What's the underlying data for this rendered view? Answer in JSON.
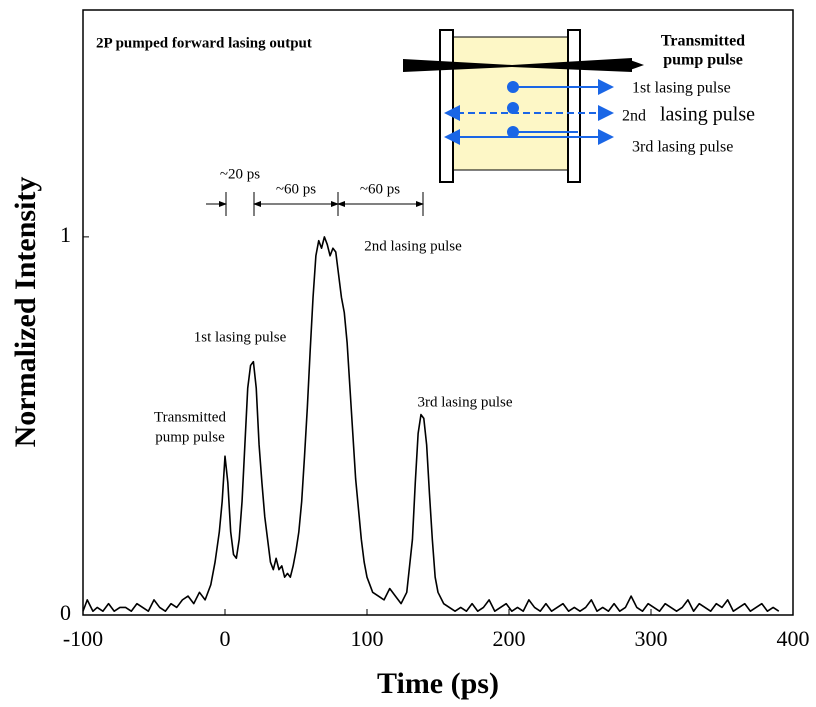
{
  "chart_data": {
    "type": "line",
    "xlabel": "Time (ps)",
    "ylabel": "Normalized Intensity",
    "xlim": [
      -100,
      400
    ],
    "ylim": [
      0,
      1.6
    ],
    "xticks": [
      -100,
      0,
      100,
      200,
      300,
      400
    ],
    "yticks": [
      0,
      1
    ],
    "color": "#000000",
    "x": [
      -100,
      -97,
      -93,
      -90,
      -86,
      -82,
      -78,
      -74,
      -70,
      -66,
      -62,
      -58,
      -54,
      -50,
      -46,
      -42,
      -38,
      -34,
      -30,
      -26,
      -22,
      -18,
      -14,
      -10,
      -7,
      -4,
      -2,
      0,
      2,
      4,
      6,
      8,
      10,
      12,
      14,
      16,
      18,
      20,
      22,
      24,
      26,
      28,
      30,
      32,
      34,
      36,
      38,
      40,
      42,
      44,
      46,
      48,
      50,
      52,
      54,
      56,
      58,
      60,
      62,
      64,
      66,
      68,
      70,
      72,
      74,
      76,
      78,
      80,
      82,
      84,
      86,
      88,
      90,
      92,
      94,
      96,
      98,
      100,
      104,
      108,
      112,
      116,
      120,
      124,
      128,
      132,
      134,
      136,
      138,
      140,
      142,
      144,
      146,
      148,
      150,
      154,
      158,
      162,
      166,
      170,
      174,
      178,
      182,
      186,
      190,
      194,
      198,
      202,
      206,
      210,
      214,
      218,
      222,
      226,
      230,
      234,
      238,
      242,
      246,
      250,
      254,
      258,
      262,
      266,
      270,
      274,
      278,
      282,
      286,
      290,
      294,
      298,
      302,
      306,
      310,
      314,
      318,
      322,
      326,
      330,
      334,
      338,
      342,
      346,
      350,
      354,
      358,
      362,
      366,
      370,
      374,
      378,
      382,
      386,
      390
    ],
    "values": [
      0.01,
      0.04,
      0.01,
      0.02,
      0.01,
      0.03,
      0.01,
      0.02,
      0.02,
      0.01,
      0.03,
      0.02,
      0.01,
      0.04,
      0.02,
      0.01,
      0.03,
      0.02,
      0.04,
      0.05,
      0.03,
      0.06,
      0.04,
      0.08,
      0.14,
      0.22,
      0.3,
      0.42,
      0.35,
      0.22,
      0.16,
      0.15,
      0.2,
      0.3,
      0.45,
      0.6,
      0.66,
      0.67,
      0.6,
      0.45,
      0.35,
      0.26,
      0.2,
      0.14,
      0.12,
      0.15,
      0.12,
      0.13,
      0.1,
      0.11,
      0.1,
      0.13,
      0.17,
      0.22,
      0.3,
      0.42,
      0.55,
      0.7,
      0.84,
      0.95,
      0.99,
      0.97,
      1.0,
      0.98,
      0.95,
      0.97,
      0.96,
      0.9,
      0.84,
      0.8,
      0.72,
      0.6,
      0.48,
      0.36,
      0.28,
      0.2,
      0.14,
      0.1,
      0.06,
      0.05,
      0.04,
      0.07,
      0.05,
      0.03,
      0.06,
      0.2,
      0.35,
      0.48,
      0.53,
      0.52,
      0.45,
      0.32,
      0.2,
      0.1,
      0.06,
      0.03,
      0.02,
      0.01,
      0.02,
      0.01,
      0.03,
      0.01,
      0.02,
      0.04,
      0.01,
      0.02,
      0.03,
      0.01,
      0.02,
      0.01,
      0.04,
      0.02,
      0.01,
      0.03,
      0.01,
      0.02,
      0.03,
      0.01,
      0.02,
      0.01,
      0.02,
      0.04,
      0.01,
      0.02,
      0.01,
      0.03,
      0.01,
      0.02,
      0.05,
      0.02,
      0.01,
      0.03,
      0.02,
      0.01,
      0.03,
      0.02,
      0.01,
      0.02,
      0.04,
      0.01,
      0.03,
      0.02,
      0.01,
      0.03,
      0.02,
      0.04,
      0.01,
      0.02,
      0.03,
      0.01,
      0.02,
      0.03,
      0.01,
      0.02,
      0.01
    ],
    "annotations": [
      "2P pumped forward lasing output",
      "Transmitted",
      "pump pulse",
      "1st lasing pulse",
      "2nd lasing pulse",
      "3rd lasing pulse",
      "~20 ps",
      "~60 ps",
      "~60 ps"
    ],
    "inset_labels": [
      "Transmitted",
      "pump pulse",
      "1st lasing pulse",
      "2nd",
      "lasing pulse",
      "3rd lasing pulse"
    ]
  }
}
